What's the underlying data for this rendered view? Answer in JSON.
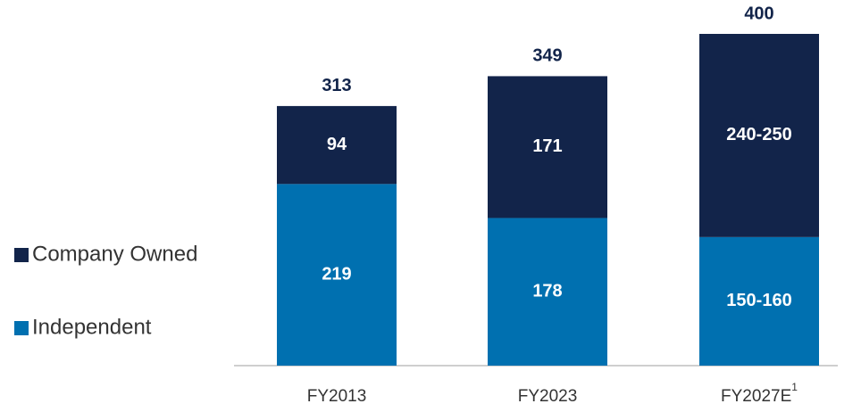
{
  "chart_data": {
    "type": "stacked_bar",
    "categories": [
      "FY2013",
      "FY2023",
      "FY2027E"
    ],
    "category_footnotes": [
      null,
      null,
      "1"
    ],
    "series": [
      {
        "name": "Independent",
        "color": "#0070b0",
        "values": [
          219,
          178,
          155
        ],
        "value_labels": [
          "219",
          "178",
          "150-160"
        ]
      },
      {
        "name": "Company Owned",
        "color": "#12244a",
        "values": [
          94,
          171,
          245
        ],
        "value_labels": [
          "94",
          "171",
          "240-250"
        ]
      }
    ],
    "totals": [
      313,
      349,
      400
    ],
    "ylim": [
      0,
      400
    ],
    "legend": "left"
  }
}
